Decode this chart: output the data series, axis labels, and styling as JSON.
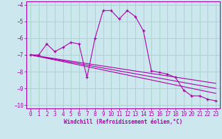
{
  "xlabel": "Windchill (Refroidissement éolien,°C)",
  "background_color": "#cce8ee",
  "grid_color": "#aad4cc",
  "line_color": "#aa00aa",
  "xlim": [
    -0.5,
    23.5
  ],
  "ylim": [
    -10.2,
    -3.8
  ],
  "xticks": [
    0,
    1,
    2,
    3,
    4,
    5,
    6,
    7,
    8,
    9,
    10,
    11,
    12,
    13,
    14,
    15,
    16,
    17,
    18,
    19,
    20,
    21,
    22,
    23
  ],
  "yticks": [
    -10,
    -9,
    -8,
    -7,
    -6,
    -5,
    -4
  ],
  "curve1_x": [
    0,
    1,
    2,
    3,
    4,
    5,
    6,
    7,
    8,
    9,
    10,
    11,
    12,
    13,
    14,
    15,
    16,
    17,
    18,
    19,
    20,
    21,
    22,
    23
  ],
  "curve1_y": [
    -7.0,
    -7.0,
    -6.35,
    -6.8,
    -6.55,
    -6.25,
    -6.35,
    -8.35,
    -6.0,
    -4.35,
    -4.35,
    -4.85,
    -4.35,
    -4.7,
    -5.55,
    -7.95,
    -8.05,
    -8.15,
    -8.35,
    -9.1,
    -9.45,
    -9.45,
    -9.65,
    -9.75
  ],
  "line1_x": [
    0,
    23
  ],
  "line1_y": [
    -7.0,
    -8.7
  ],
  "line2_x": [
    0,
    23
  ],
  "line2_y": [
    -7.0,
    -9.0
  ],
  "line3_x": [
    0,
    23
  ],
  "line3_y": [
    -7.0,
    -9.3
  ],
  "fontsize_axis": 5.5,
  "fontsize_tick": 5.5
}
